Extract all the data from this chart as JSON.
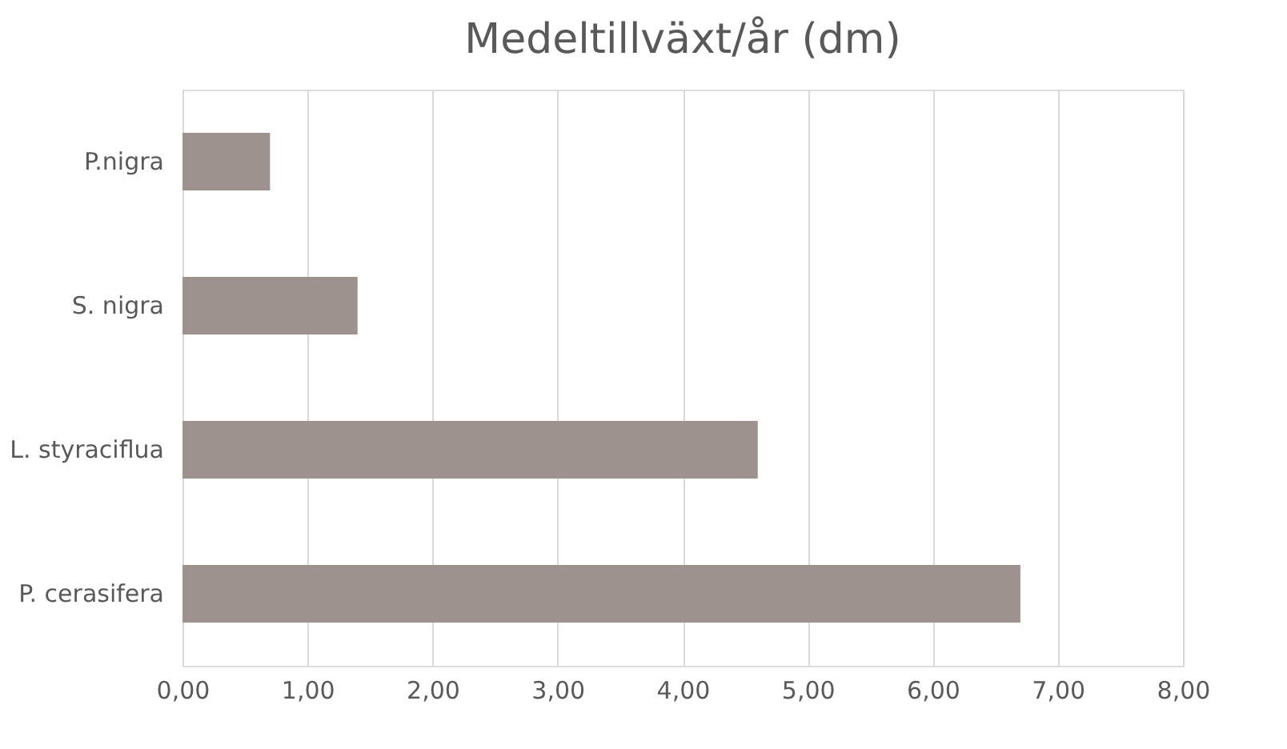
{
  "chart_data": {
    "type": "bar",
    "orientation": "horizontal",
    "title": "Medeltillväxt/år (dm)",
    "categories": [
      "P.nigra",
      "S. nigra",
      "L. styraciflua",
      "P. cerasifera"
    ],
    "values": [
      0.7,
      1.4,
      4.6,
      6.7
    ],
    "color": "#9d928d",
    "xlim": [
      0,
      8
    ],
    "xticks": [
      {
        "value": 0,
        "label": "0,00"
      },
      {
        "value": 1,
        "label": "1,00"
      },
      {
        "value": 2,
        "label": "2,00"
      },
      {
        "value": 3,
        "label": "3,00"
      },
      {
        "value": 4,
        "label": "4,00"
      },
      {
        "value": 5,
        "label": "5,00"
      },
      {
        "value": 6,
        "label": "6,00"
      },
      {
        "value": 7,
        "label": "7,00"
      },
      {
        "value": 8,
        "label": "8,00"
      }
    ],
    "grid": "x"
  }
}
